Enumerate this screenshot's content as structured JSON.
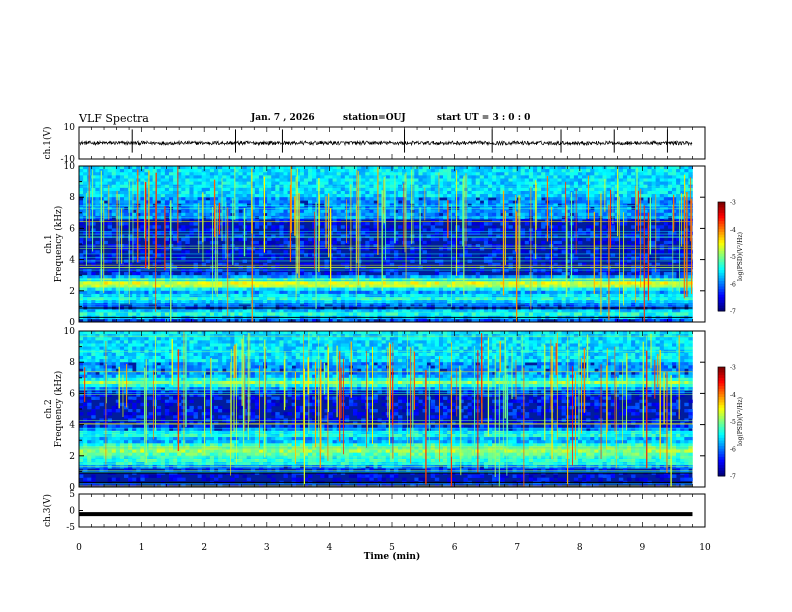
{
  "header": {
    "title": "VLF Spectra",
    "date": "Jan. 7 , 2026",
    "station": "station=OUJ",
    "start": "start UT =  3 : 0  : 0"
  },
  "chart_data": [
    {
      "type": "line",
      "name": "ch1-waveform",
      "ylabel": "ch.1(V)",
      "ylim": [
        -10,
        10
      ],
      "yticks": [
        "10",
        "-10"
      ],
      "xlim": [
        0,
        10
      ],
      "baseline": 0,
      "noise_amplitude": 1.2,
      "spike_times_min": [
        0.85,
        2.5,
        3.25,
        5.2,
        6.6,
        7.7,
        8.55,
        9.4
      ]
    },
    {
      "type": "heatmap",
      "name": "ch1-spectrogram",
      "ylabel": "ch.1 Frequency (kHz)",
      "ylim": [
        0,
        10
      ],
      "yticks": [
        "0",
        "2",
        "4",
        "6",
        "8",
        "10"
      ],
      "xlim": [
        0,
        9.8
      ],
      "bands_khz": [
        2.3,
        2.6,
        1.5,
        0.5
      ],
      "colorbar": {
        "label": "log(PSD)(V²/Hz)",
        "ticks": [
          "-3",
          "-4",
          "-5",
          "-6",
          "-7"
        ],
        "range": [
          -7,
          -3
        ]
      }
    },
    {
      "type": "heatmap",
      "name": "ch2-spectrogram",
      "ylabel": "ch.2 Frequency (kHz)",
      "ylim": [
        0,
        10
      ],
      "yticks": [
        "0",
        "2",
        "4",
        "6",
        "8",
        "10"
      ],
      "xlim": [
        0,
        9.8
      ],
      "bands_khz": [
        2.2,
        2.6,
        3.4,
        6.6,
        1.6
      ],
      "colorbar": {
        "label": "log(PSD)(V²/Hz)",
        "ticks": [
          "-3",
          "-4",
          "-5",
          "-6",
          "-7"
        ],
        "range": [
          -7,
          -3
        ]
      }
    },
    {
      "type": "line",
      "name": "ch3-waveform",
      "ylabel": "ch.3(V)",
      "ylim": [
        -5,
        5
      ],
      "yticks": [
        "5",
        "0",
        "-5"
      ],
      "xlim": [
        0,
        10
      ],
      "value": -1.1
    }
  ],
  "xaxis": {
    "label": "Time (min)",
    "ticks": [
      "0",
      "1",
      "2",
      "3",
      "4",
      "5",
      "6",
      "7",
      "8",
      "9",
      "10"
    ]
  }
}
